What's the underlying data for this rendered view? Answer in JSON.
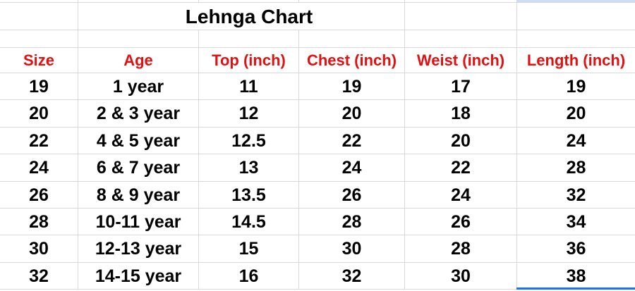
{
  "sheet": {
    "title": "Lehnga Chart",
    "headers": [
      "Size",
      "Age",
      "Top (inch)",
      "Chest (inch)",
      "Weist (inch)",
      "Length (inch)"
    ],
    "rows": [
      [
        "19",
        "1 year",
        "11",
        "19",
        "17",
        "19"
      ],
      [
        "20",
        "2 & 3 year",
        "12",
        "20",
        "18",
        "20"
      ],
      [
        "22",
        "4 & 5 year",
        "12.5",
        "22",
        "20",
        "24"
      ],
      [
        "24",
        "6 & 7 year",
        "13",
        "24",
        "22",
        "28"
      ],
      [
        "26",
        "8 & 9 year",
        "13.5",
        "26",
        "24",
        "32"
      ],
      [
        "28",
        "10-11 year",
        "14.5",
        "28",
        "26",
        "34"
      ],
      [
        "30",
        "12-13 year",
        "15",
        "30",
        "28",
        "36"
      ],
      [
        "32",
        "14-15 year",
        "16",
        "32",
        "30",
        "38"
      ]
    ],
    "colors": {
      "header_text": "#e21010",
      "body_text": "#000000",
      "gridline": "#d9d9d9",
      "selection_border": "#1a73e8",
      "selection_fill": "#cdddf3"
    }
  },
  "chart_data": {
    "type": "table",
    "title": "Lehnga Chart",
    "columns": [
      "Size",
      "Age",
      "Top (inch)",
      "Chest (inch)",
      "Weist (inch)",
      "Length (inch)"
    ],
    "rows": [
      [
        19,
        "1 year",
        11,
        19,
        17,
        19
      ],
      [
        20,
        "2 & 3 year",
        12,
        20,
        18,
        20
      ],
      [
        22,
        "4 & 5 year",
        12.5,
        22,
        20,
        24
      ],
      [
        24,
        "6 & 7 year",
        13,
        24,
        22,
        28
      ],
      [
        26,
        "8 & 9 year",
        13.5,
        26,
        24,
        32
      ],
      [
        28,
        "10-11 year",
        14.5,
        28,
        26,
        34
      ],
      [
        30,
        "12-13 year",
        15,
        30,
        28,
        36
      ],
      [
        32,
        "14-15 year",
        16,
        32,
        30,
        38
      ]
    ],
    "layout": {
      "gridlines": true,
      "header_text_color": "#e21010",
      "body_text_bold": true
    }
  }
}
